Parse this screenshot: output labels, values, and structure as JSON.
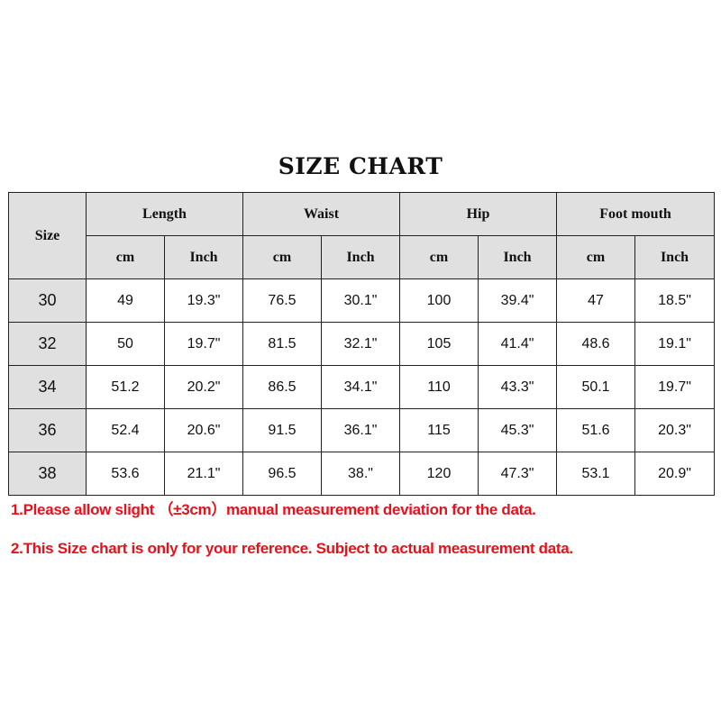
{
  "title": "SIZE CHART",
  "header": {
    "size": "Size",
    "groups": [
      "Length",
      "Waist",
      "Hip",
      "Foot mouth"
    ],
    "units": [
      "cm",
      "Inch"
    ]
  },
  "rows": [
    [
      "30",
      "49",
      "19.3\"",
      "76.5",
      "30.1\"",
      "100",
      "39.4\"",
      "47",
      "18.5\""
    ],
    [
      "32",
      "50",
      "19.7\"",
      "81.5",
      "32.1\"",
      "105",
      "41.4\"",
      "48.6",
      "19.1\""
    ],
    [
      "34",
      "51.2",
      "20.2\"",
      "86.5",
      "34.1\"",
      "110",
      "43.3\"",
      "50.1",
      "19.7\""
    ],
    [
      "36",
      "52.4",
      "20.6\"",
      "91.5",
      "36.1\"",
      "115",
      "45.3\"",
      "51.6",
      "20.3\""
    ],
    [
      "38",
      "53.6",
      "21.1\"",
      "96.5",
      "38.\"",
      "120",
      "47.3\"",
      "53.1",
      "20.9\""
    ]
  ],
  "notes": [
    "1.Please allow slight （±3cm）manual measurement deviation for the data.",
    "2.This Size chart is only for your reference. Subject to actual measurement data."
  ],
  "colors": {
    "header_bg": "#e0e0e0",
    "note_text": "#e8101a"
  }
}
